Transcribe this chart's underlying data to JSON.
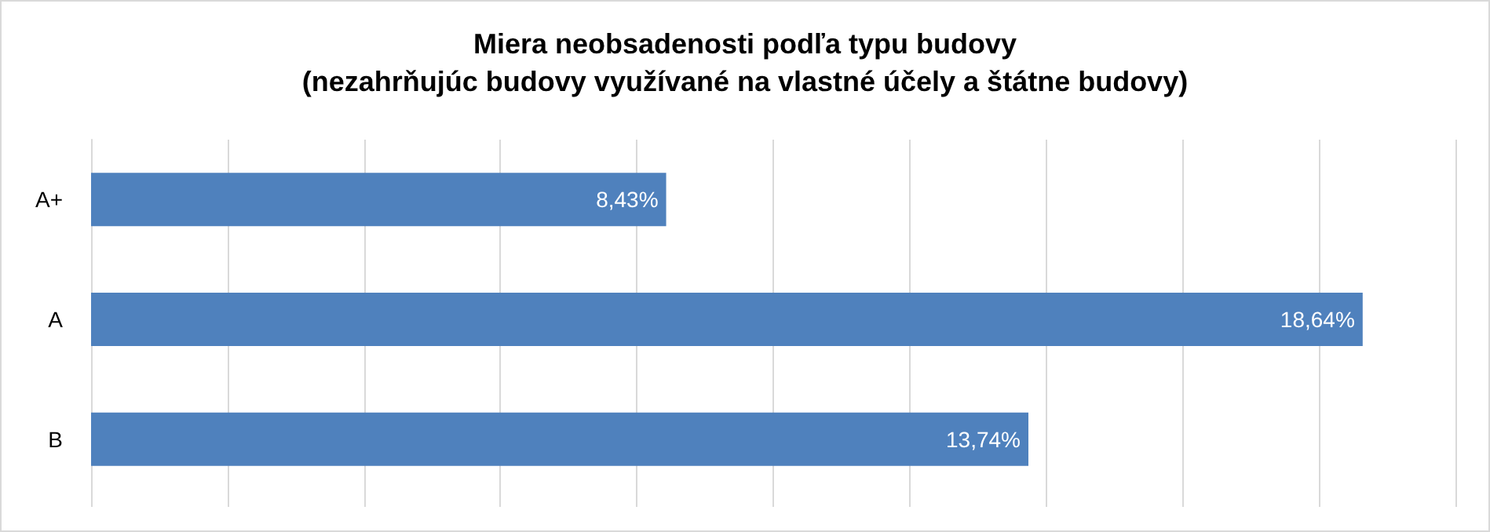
{
  "chart_data": {
    "type": "bar",
    "orientation": "horizontal",
    "title": "Miera neobsadenosti podľa typu budovy\n(nezahrňujúc budovy využívané na vlastné účely a štátne budovy)",
    "categories": [
      "A+",
      "A",
      "B"
    ],
    "values": [
      8.43,
      18.64,
      13.74
    ],
    "value_labels": [
      "8,43%",
      "18,64%",
      "13,74%"
    ],
    "color": "#4f81bd",
    "xlim": [
      0,
      20
    ],
    "xticks": [
      {
        "value": 0,
        "label": null
      },
      {
        "value": 2,
        "label": null
      },
      {
        "value": 4,
        "label": null
      },
      {
        "value": 6,
        "label": null
      },
      {
        "value": 8,
        "label": null
      },
      {
        "value": 10,
        "label": null
      },
      {
        "value": 12,
        "label": null
      },
      {
        "value": 14,
        "label": null
      },
      {
        "value": 16,
        "label": null
      },
      {
        "value": 18,
        "label": null
      },
      {
        "value": 20,
        "label": null
      }
    ],
    "tick_labels": "y",
    "grid": "x"
  }
}
